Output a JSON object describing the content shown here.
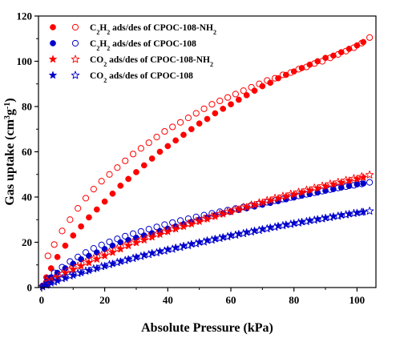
{
  "chart_data": {
    "type": "scatter",
    "title": "",
    "xlabel": "Absolute Pressure (kPa)",
    "ylabel": {
      "main": "Gas uptake (cm",
      "sup1": "3",
      "mid": "g",
      "sup2": "-1",
      "end": ")"
    },
    "xlim": [
      -1,
      106
    ],
    "ylim": [
      0,
      120
    ],
    "xticks": [
      0,
      20,
      40,
      60,
      80,
      100
    ],
    "yticks": [
      0,
      20,
      40,
      60,
      80,
      100,
      120
    ],
    "grid": false,
    "legend_position": "top-left",
    "series": [
      {
        "legend": {
          "pre": "C",
          "sub1": "2",
          "mid": "H",
          "sub2": "2",
          "post": " ads/des of CPOC-108-NH",
          "sub3": "2"
        },
        "color": "#ff0000",
        "marker": "circle",
        "adsorption": {
          "x": [
            0.3,
            1.5,
            3,
            5,
            7.5,
            10,
            12.5,
            15,
            17.5,
            20,
            22.5,
            25,
            27.5,
            30,
            32.5,
            35,
            37.5,
            40,
            42.5,
            45,
            47.5,
            50,
            52.5,
            55,
            57.5,
            60,
            62.5,
            65,
            67.5,
            70,
            72.5,
            75,
            77.5,
            80,
            82.5,
            85,
            87.5,
            90,
            92.5,
            95,
            97.5,
            100,
            102
          ],
          "y": [
            0.8,
            4.5,
            8.5,
            13.5,
            18.5,
            23,
            27,
            31,
            34.5,
            38,
            41.5,
            45,
            48,
            51,
            54,
            57,
            60,
            62.5,
            65,
            67.5,
            70,
            72.5,
            74.5,
            77,
            79,
            81,
            83,
            85,
            87,
            89,
            90.5,
            92.5,
            94,
            95.5,
            97,
            98.5,
            100,
            101.5,
            102.5,
            104,
            105.5,
            107,
            108.5
          ]
        },
        "desorption": {
          "x": [
            2,
            4,
            6.5,
            9,
            11.5,
            14,
            16.5,
            19,
            21.5,
            24,
            26.5,
            29,
            31.5,
            34,
            36.5,
            39,
            41.5,
            44,
            46.5,
            49,
            51.5,
            54,
            56.5,
            59,
            61.5,
            64,
            66.5,
            69,
            71.5,
            74,
            76.5,
            79,
            81.5,
            84,
            86.5,
            89,
            91.5,
            94,
            96.5,
            99,
            101.5,
            104
          ],
          "y": [
            14,
            19,
            25,
            30,
            35,
            39.5,
            43.5,
            47,
            50,
            53,
            56,
            59,
            61.5,
            64,
            66.5,
            69,
            71,
            73,
            75,
            77,
            79,
            81,
            82.5,
            84,
            85.5,
            87,
            88.5,
            90,
            91.5,
            92.5,
            94,
            95,
            96.5,
            97.5,
            99,
            100,
            101.5,
            103,
            104.5,
            106,
            108,
            110.5
          ]
        }
      },
      {
        "legend": {
          "pre": "C",
          "sub1": "2",
          "mid": "H",
          "sub2": "2",
          "post": " ads/des of CPOC-108",
          "sub3": ""
        },
        "color": "#0000cc",
        "marker": "circle",
        "adsorption": {
          "x": [
            0.3,
            1.5,
            3,
            5,
            7.5,
            10,
            12.5,
            15,
            17.5,
            20,
            22.5,
            25,
            27.5,
            30,
            32.5,
            35,
            37.5,
            40,
            42.5,
            45,
            47.5,
            50,
            52.5,
            55,
            57.5,
            60,
            62.5,
            65,
            67.5,
            70,
            72.5,
            75,
            77.5,
            80,
            82.5,
            85,
            87.5,
            90,
            92.5,
            95,
            97.5,
            100,
            102
          ],
          "y": [
            0.8,
            2.5,
            4.5,
            6.5,
            8.5,
            10.5,
            12.5,
            14,
            15.5,
            17,
            18.5,
            20,
            21,
            22,
            23,
            24,
            25,
            26,
            27,
            28,
            29,
            30,
            31,
            32,
            32.8,
            33.5,
            34.3,
            35,
            35.8,
            36.6,
            37.4,
            38.2,
            39,
            39.8,
            40.6,
            41.3,
            42,
            42.8,
            43.5,
            44.2,
            44.9,
            45.6,
            46
          ]
        },
        "desorption": {
          "x": [
            2,
            4,
            6.5,
            9,
            11.5,
            14,
            16.5,
            19,
            21.5,
            24,
            26.5,
            29,
            31.5,
            34,
            36.5,
            39,
            41.5,
            44,
            46.5,
            49,
            51.5,
            54,
            56.5,
            59,
            61.5,
            64,
            66.5,
            69,
            71.5,
            74,
            76.5,
            79,
            81.5,
            84,
            86.5,
            89,
            91.5,
            94,
            96.5,
            99,
            101.5,
            104
          ],
          "y": [
            4,
            6.5,
            9,
            11.5,
            13.5,
            15.5,
            17.3,
            18.8,
            20.2,
            21.5,
            22.7,
            23.8,
            24.8,
            25.8,
            26.8,
            27.8,
            28.7,
            29.6,
            30.4,
            31.2,
            32,
            32.8,
            33.5,
            34.2,
            34.9,
            35.6,
            36.3,
            37,
            37.7,
            38.4,
            39.1,
            39.8,
            40.5,
            41.2,
            41.9,
            42.6,
            43.3,
            44,
            44.6,
            45.2,
            45.8,
            46.5
          ]
        }
      },
      {
        "legend": {
          "pre": "CO",
          "sub1": "2",
          "mid": "",
          "sub2": "",
          "post": " ads/des of CPOC-108-NH",
          "sub3": "2"
        },
        "color": "#ff0000",
        "marker": "star",
        "adsorption": {
          "x": [
            0.3,
            1.5,
            3,
            5,
            7.5,
            10,
            12.5,
            15,
            17.5,
            20,
            22.5,
            25,
            27.5,
            30,
            32.5,
            35,
            37.5,
            40,
            42.5,
            45,
            47.5,
            50,
            52.5,
            55,
            57.5,
            60,
            62.5,
            65,
            67.5,
            70,
            72.5,
            75,
            77.5,
            80,
            82.5,
            85,
            87.5,
            90,
            92.5,
            95,
            97.5,
            100,
            102
          ],
          "y": [
            0.5,
            1.5,
            3,
            4.5,
            6.5,
            8,
            9.5,
            11,
            12.5,
            14,
            15.5,
            17,
            18.5,
            19.8,
            21,
            22.3,
            23.5,
            24.7,
            25.9,
            27,
            28.1,
            29.2,
            30.3,
            31.4,
            32.5,
            33.5,
            34.5,
            35.5,
            36.5,
            37.5,
            38.5,
            39.4,
            40.3,
            41.2,
            42.1,
            43,
            43.9,
            44.8,
            45.6,
            46.4,
            47.2,
            48,
            48.6
          ]
        },
        "desorption": {
          "x": [
            2,
            4,
            6.5,
            9,
            11.5,
            14,
            16.5,
            19,
            21.5,
            24,
            26.5,
            29,
            31.5,
            34,
            36.5,
            39,
            41.5,
            44,
            46.5,
            49,
            51.5,
            54,
            56.5,
            59,
            61.5,
            64,
            66.5,
            69,
            71.5,
            74,
            76.5,
            79,
            81.5,
            84,
            86.5,
            89,
            91.5,
            94,
            96.5,
            99,
            101.5,
            104
          ],
          "y": [
            2.5,
            4,
            6,
            8,
            9.5,
            11.2,
            12.8,
            14.3,
            15.8,
            17.2,
            18.6,
            20,
            21.2,
            22.4,
            23.6,
            24.8,
            26,
            27.1,
            28.2,
            29.3,
            30.4,
            31.5,
            32.5,
            33.5,
            34.5,
            35.5,
            36.5,
            37.5,
            38.5,
            39.5,
            40.4,
            41.3,
            42.2,
            43.1,
            44,
            44.9,
            45.8,
            46.6,
            47.4,
            48.2,
            49,
            49.8
          ]
        }
      },
      {
        "legend": {
          "pre": "CO",
          "sub1": "2",
          "mid": "",
          "sub2": "",
          "post": " ads/des of CPOC-108",
          "sub3": ""
        },
        "color": "#0000cc",
        "marker": "star",
        "adsorption": {
          "x": [
            0.3,
            1.5,
            3,
            5,
            7.5,
            10,
            12.5,
            15,
            17.5,
            20,
            22.5,
            25,
            27.5,
            30,
            32.5,
            35,
            37.5,
            40,
            42.5,
            45,
            47.5,
            50,
            52.5,
            55,
            57.5,
            60,
            62.5,
            65,
            67.5,
            70,
            72.5,
            75,
            77.5,
            80,
            82.5,
            85,
            87.5,
            90,
            92.5,
            95,
            97.5,
            100,
            102
          ],
          "y": [
            0.3,
            1,
            2,
            3,
            4.2,
            5.4,
            6.5,
            7.5,
            8.5,
            9.5,
            10.5,
            11.5,
            12.5,
            13.4,
            14.3,
            15.2,
            16,
            16.8,
            17.6,
            18.4,
            19.2,
            20,
            20.8,
            21.5,
            22.2,
            23,
            23.7,
            24.4,
            25.1,
            25.8,
            26.5,
            27.2,
            27.8,
            28.4,
            29,
            29.6,
            30.2,
            30.8,
            31.4,
            32,
            32.5,
            33,
            33.4
          ]
        },
        "desorption": {
          "x": [
            2,
            4,
            6.5,
            9,
            11.5,
            14,
            16.5,
            19,
            21.5,
            24,
            26.5,
            29,
            31.5,
            34,
            36.5,
            39,
            41.5,
            44,
            46.5,
            49,
            51.5,
            54,
            56.5,
            59,
            61.5,
            64,
            66.5,
            69,
            71.5,
            74,
            76.5,
            79,
            81.5,
            84,
            86.5,
            89,
            91.5,
            94,
            96.5,
            99,
            101.5,
            104
          ],
          "y": [
            1.5,
            2.5,
            4,
            5.2,
            6.3,
            7.3,
            8.3,
            9.3,
            10.2,
            11.1,
            12,
            12.9,
            13.8,
            14.6,
            15.4,
            16.2,
            17,
            17.8,
            18.6,
            19.4,
            20.2,
            21,
            21.8,
            22.5,
            23.2,
            23.9,
            24.6,
            25.3,
            26,
            26.7,
            27.4,
            28,
            28.6,
            29.2,
            29.8,
            30.4,
            31,
            31.6,
            32.2,
            32.8,
            33.3,
            33.8
          ]
        }
      }
    ]
  }
}
